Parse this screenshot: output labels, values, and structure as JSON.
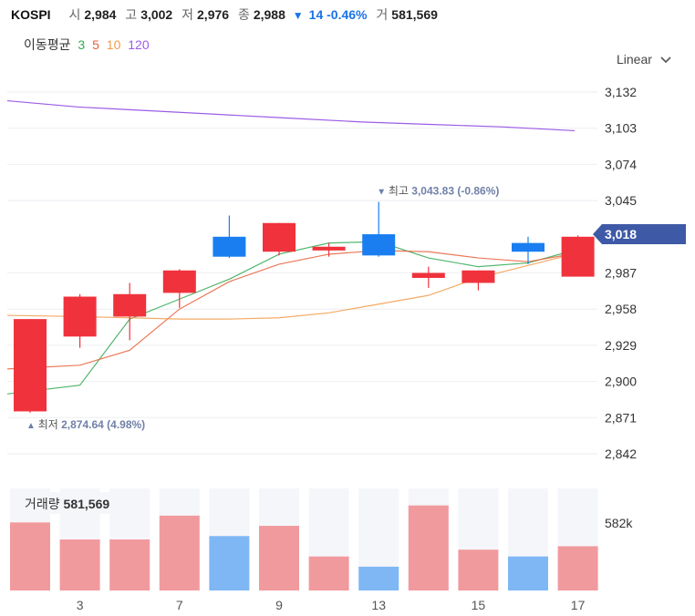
{
  "header": {
    "symbol": "KOSPI",
    "open_label": "시",
    "open": "2,984",
    "high_label": "고",
    "high": "3,002",
    "low_label": "저",
    "low": "2,976",
    "close_label": "종",
    "close": "2,988",
    "change_arrow": "▼",
    "change": "14 -0.46%",
    "volume_label": "거",
    "volume": "581,569"
  },
  "ma_legend": {
    "label": "이동평균",
    "periods": [
      {
        "text": "3",
        "color": "#34a853"
      },
      {
        "text": "5",
        "color": "#e8603c"
      },
      {
        "text": "10",
        "color": "#f29b4b"
      },
      {
        "text": "120",
        "color": "#9c5ce6"
      }
    ]
  },
  "scale_select": {
    "value": "Linear",
    "icon": "chevron-down-icon"
  },
  "colors": {
    "up": "#f0323c",
    "down": "#1a7ef0",
    "up_volume": "#f19a9e",
    "down_volume": "#7fb7f5",
    "price_tag": "#3e5aa6"
  },
  "chart_data": {
    "type": "candlestick",
    "candles": [
      {
        "open": 2876,
        "high": 2950,
        "low": 2875,
        "close": 2950,
        "volume": 580000
      },
      {
        "open": 2936,
        "high": 2970,
        "low": 2927,
        "close": 2968,
        "volume": 575000
      },
      {
        "open": 2952,
        "high": 2979,
        "low": 2933,
        "close": 2970,
        "volume": 575000
      },
      {
        "open": 2971,
        "high": 2990,
        "low": 2959,
        "close": 2989,
        "volume": 582000
      },
      {
        "open": 3016,
        "high": 3033,
        "low": 2999,
        "close": 3000,
        "volume": 576000
      },
      {
        "open": 3004,
        "high": 3027,
        "low": 3001,
        "close": 3027,
        "volume": 579000
      },
      {
        "open": 3005,
        "high": 3011,
        "low": 3000,
        "close": 3008,
        "volume": 570000
      },
      {
        "open": 3018,
        "high": 3044,
        "low": 3000,
        "close": 3001,
        "volume": 567000
      },
      {
        "open": 2983,
        "high": 2992,
        "low": 2975,
        "close": 2987,
        "volume": 585000
      },
      {
        "open": 2979,
        "high": 2989,
        "low": 2973,
        "close": 2989,
        "volume": 572000
      },
      {
        "open": 3011,
        "high": 3016,
        "low": 2994,
        "close": 3004,
        "volume": 570000
      },
      {
        "open": 2984,
        "high": 3017,
        "low": 2986,
        "close": 3016,
        "volume": 573000
      }
    ],
    "ma3": [
      2890,
      2897,
      2950,
      2966,
      2982,
      3002,
      3011,
      3012,
      2999,
      2992,
      2995,
      3006
    ],
    "ma5": [
      2910,
      2913,
      2925,
      2958,
      2980,
      2994,
      3002,
      3005,
      3004,
      2999,
      2996,
      3003
    ],
    "ma10": [
      2953,
      2952,
      2951,
      2950,
      2950,
      2951,
      2955,
      2962,
      2969,
      2983,
      2993,
      3003
    ],
    "ma120": [
      3125,
      3120,
      3117,
      3114,
      3111,
      3108,
      3106,
      3104,
      3101
    ],
    "x_tick_labels": [
      {
        "index": 1,
        "label": "3"
      },
      {
        "index": 3,
        "label": "7"
      },
      {
        "index": 5,
        "label": "9"
      },
      {
        "index": 7,
        "label": "13"
      },
      {
        "index": 9,
        "label": "15"
      },
      {
        "index": 11,
        "label": "17"
      }
    ],
    "y_ticks": [
      3132,
      3103,
      3074,
      3045,
      2987,
      2958,
      2929,
      2900,
      2871,
      2842
    ],
    "ylim": [
      2835,
      3140
    ],
    "current_price_label": "3,018",
    "current_price": 3018,
    "high_annotation": {
      "index": 7,
      "value": 3044,
      "arrow": "▼",
      "label": "최고",
      "value_text": "3,043.83 (-0.86%)"
    },
    "low_annotation": {
      "index": 0,
      "value": 2875,
      "arrow": "▲",
      "label": "최저",
      "value_text": "2,874.64 (4.98%)"
    },
    "volume_label": "거래량",
    "volume_value": "581,569",
    "volume_axis_label": "582k",
    "volume_ylim": [
      560000,
      590000
    ],
    "grid": true
  }
}
